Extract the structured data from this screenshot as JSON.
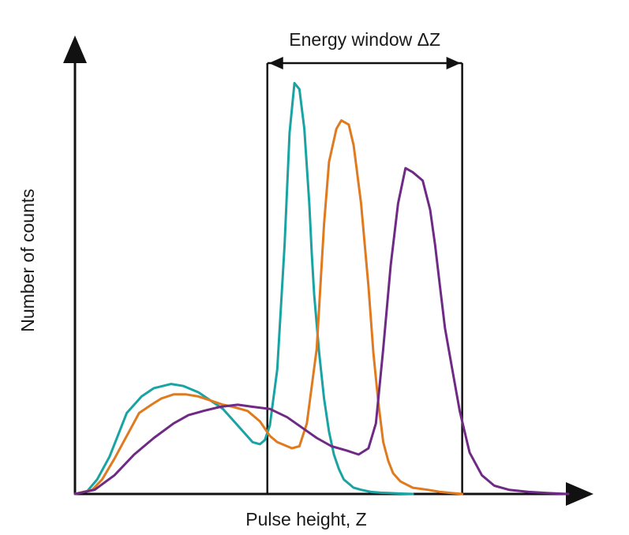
{
  "chart_data": {
    "type": "line",
    "xlabel": "Pulse height, Z",
    "ylabel": "Number of counts",
    "xlim": [
      0,
      100
    ],
    "ylim": [
      0,
      100
    ],
    "annotation": {
      "text": "Energy window ΔZ",
      "x_start": 39,
      "x_end": 78.5
    },
    "colors": {
      "axes": "#111111",
      "window": "#111111"
    },
    "series": [
      {
        "color": "#1aa3a3",
        "x": [
          0,
          2.5,
          4.5,
          7,
          9,
          10.5,
          13.5,
          16,
          19.5,
          22,
          25,
          27.5,
          30,
          33,
          36,
          37.5,
          38.5,
          39.5,
          41,
          42.5,
          43.5,
          44.5,
          45.5,
          46.5,
          47.5,
          48,
          48.5,
          49.5,
          50.5,
          51.5,
          52.5,
          53.5,
          54.5,
          55.5,
          56.5,
          58,
          60,
          62,
          64,
          66,
          68.5
        ],
        "y": [
          0,
          0.7,
          3.5,
          9,
          15,
          19.5,
          23.5,
          25.5,
          26.5,
          26,
          24.5,
          22.5,
          20.5,
          16.5,
          12.5,
          12,
          13,
          16.5,
          30,
          60,
          87,
          99,
          97.5,
          88,
          70,
          58,
          48,
          34,
          23,
          15,
          9.5,
          6,
          3.5,
          2.5,
          1.5,
          1,
          0.5,
          0.3,
          0.2,
          0.1,
          0
        ]
      },
      {
        "color": "#e07a1f",
        "x": [
          0,
          3.5,
          5.5,
          8,
          10.5,
          13,
          15.5,
          17.5,
          20,
          22.5,
          25,
          27.5,
          30,
          32,
          35,
          37.5,
          39.5,
          41,
          44,
          45.5,
          47,
          49,
          50.5,
          51.5,
          53,
          54,
          55.5,
          56.5,
          58,
          59.5,
          60.5,
          61.5,
          62.5,
          63.5,
          64.5,
          66,
          68.5,
          71.5,
          74,
          76.5,
          78.5
        ],
        "y": [
          0,
          1,
          3.5,
          8.5,
          14,
          19.5,
          21.5,
          23,
          24,
          24,
          23.5,
          22.5,
          21.5,
          21,
          20,
          17.5,
          14,
          12.5,
          11,
          11.5,
          17,
          35,
          65,
          80,
          88,
          90,
          89,
          84,
          70,
          50,
          34,
          22,
          12.5,
          8,
          5,
          3,
          1.5,
          1,
          0.5,
          0.2,
          0
        ]
      },
      {
        "color": "#6e2a84",
        "x": [
          0,
          4,
          8,
          12,
          16,
          20,
          23,
          26,
          29.5,
          33,
          36,
          39.5,
          43,
          46,
          49,
          52,
          55,
          57.5,
          59.5,
          61,
          62.5,
          64,
          65.5,
          67,
          68.5,
          70.5,
          72,
          73,
          74,
          75,
          76.5,
          78,
          80,
          82.5,
          85,
          88,
          92,
          96,
          100
        ],
        "y": [
          0,
          1,
          4.5,
          9.5,
          13.5,
          17,
          19,
          20,
          21,
          21.5,
          21,
          20.5,
          18.5,
          16,
          13.5,
          11.5,
          10.5,
          9.5,
          11,
          17,
          35,
          55,
          70,
          78.5,
          77.5,
          75.5,
          68.5,
          60,
          50,
          40,
          30,
          20,
          10,
          4.5,
          2,
          1,
          0.5,
          0.2,
          0
        ]
      }
    ]
  }
}
